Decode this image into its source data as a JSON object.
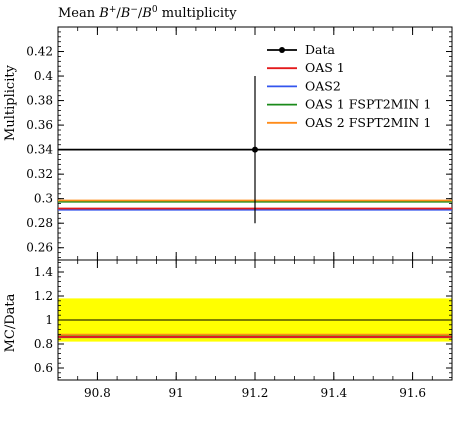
{
  "chart_data": [
    {
      "type": "line",
      "title": "Mean B⁺/B⁻/B⁰ multiplicity",
      "ylabel": "Multiplicity",
      "xlim": [
        90.7,
        91.7
      ],
      "ylim": [
        0.25,
        0.44
      ],
      "grid": false,
      "legend_position": "top-right",
      "y_ticks": [
        "0.26",
        "0.28",
        "0.3",
        "0.32",
        "0.34",
        "0.36",
        "0.38",
        "0.4",
        "0.42"
      ],
      "y_tick_values": [
        0.26,
        0.28,
        0.3,
        0.32,
        0.34,
        0.36,
        0.38,
        0.4,
        0.42
      ],
      "series": [
        {
          "name": "Data",
          "color": "#000000",
          "x": 91.2,
          "y": 0.34,
          "y_err": [
            0.28,
            0.4
          ]
        },
        {
          "name": "OAS 1",
          "color": "#e41a1c",
          "y": 0.292
        },
        {
          "name": "OAS2",
          "color": "#3355ee",
          "y": 0.291
        },
        {
          "name": "OAS 1 FSPT2MIN 1",
          "color": "#1a8a1a",
          "y": 0.2975
        },
        {
          "name": "OAS 2 FSPT2MIN 1",
          "color": "#ff8c1a",
          "y": 0.2985
        }
      ]
    },
    {
      "type": "line",
      "ylabel": "MC/Data",
      "xlim": [
        90.7,
        91.7
      ],
      "ylim": [
        0.5,
        1.5
      ],
      "x_ticks": [
        "90.8",
        "91",
        "91.2",
        "91.4",
        "91.6"
      ],
      "x_tick_values": [
        90.8,
        91.0,
        91.2,
        91.4,
        91.6
      ],
      "y_ticks": [
        "0.6",
        "0.8",
        "1",
        "1.2",
        "1.4"
      ],
      "y_tick_values": [
        0.6,
        0.8,
        1.0,
        1.2,
        1.4
      ],
      "band": {
        "low": 0.82,
        "high": 1.18,
        "color": "#ffff00"
      },
      "series": [
        {
          "name": "Data",
          "color": "#000000",
          "y": 1.0
        },
        {
          "name": "OAS 1",
          "color": "#e41a1c",
          "y": 0.859
        },
        {
          "name": "OAS2",
          "color": "#3355ee",
          "y": 0.856
        },
        {
          "name": "OAS 1 FSPT2MIN 1",
          "color": "#1a8a1a",
          "y": 0.875
        },
        {
          "name": "OAS 2 FSPT2MIN 1",
          "color": "#ff8c1a",
          "y": 0.878
        }
      ]
    }
  ]
}
